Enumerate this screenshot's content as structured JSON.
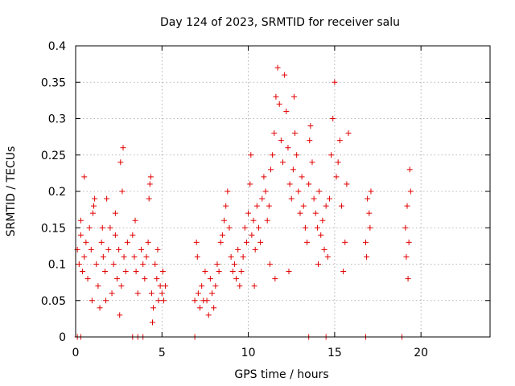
{
  "chart_data": {
    "type": "scatter",
    "title": "Day 124 of 2023, SRMTID for receiver salu",
    "xlabel": "GPS time / hours",
    "ylabel": "SRMTID / TECUs",
    "xlim": [
      0,
      24
    ],
    "ylim": [
      0,
      0.4
    ],
    "x_ticks": [
      0,
      5,
      10,
      15,
      20
    ],
    "x_tick_labels": [
      "0",
      "5",
      "10",
      "15",
      "20"
    ],
    "y_ticks": [
      0,
      0.05,
      0.1,
      0.15,
      0.2,
      0.25,
      0.3,
      0.35,
      0.4
    ],
    "y_tick_labels": [
      "0",
      "0.05",
      "0.1",
      "0.15",
      "0.2",
      "0.25",
      "0.3",
      "0.35",
      "0.4"
    ],
    "grid": true,
    "marker": "+",
    "marker_color": "#e00000",
    "series": [
      {
        "name": "SRMTID",
        "points": [
          [
            0.1,
            0.12
          ],
          [
            0.2,
            0.1
          ],
          [
            0.3,
            0.14
          ],
          [
            0.4,
            0.09
          ],
          [
            0.5,
            0.11
          ],
          [
            0.6,
            0.13
          ],
          [
            0.7,
            0.08
          ],
          [
            0.8,
            0.15
          ],
          [
            0.9,
            0.12
          ],
          [
            1.0,
            0.17
          ],
          [
            1.1,
            0.19
          ],
          [
            1.2,
            0.1
          ],
          [
            1.3,
            0.07
          ],
          [
            1.4,
            0.04
          ],
          [
            1.5,
            0.13
          ],
          [
            1.6,
            0.11
          ],
          [
            1.7,
            0.09
          ],
          [
            1.8,
            0.19
          ],
          [
            1.9,
            0.12
          ],
          [
            2.0,
            0.15
          ],
          [
            2.1,
            0.06
          ],
          [
            2.2,
            0.1
          ],
          [
            2.3,
            0.14
          ],
          [
            2.4,
            0.08
          ],
          [
            2.5,
            0.12
          ],
          [
            2.6,
            0.24
          ],
          [
            2.7,
            0.2
          ],
          [
            2.8,
            0.11
          ],
          [
            2.9,
            0.09
          ],
          [
            3.0,
            0.13
          ],
          [
            0.5,
            0.22
          ],
          [
            1.05,
            0.18
          ],
          [
            2.75,
            0.26
          ],
          [
            0.95,
            0.05
          ],
          [
            1.75,
            0.05
          ],
          [
            2.55,
            0.03
          ],
          [
            2.65,
            0.07
          ],
          [
            0.3,
            0.16
          ],
          [
            1.55,
            0.15
          ],
          [
            2.3,
            0.17
          ],
          [
            3.3,
            0.14
          ],
          [
            3.4,
            0.11
          ],
          [
            3.5,
            0.09
          ],
          [
            3.6,
            0.06
          ],
          [
            3.8,
            0.12
          ],
          [
            3.9,
            0.1
          ],
          [
            4.0,
            0.08
          ],
          [
            4.1,
            0.11
          ],
          [
            4.2,
            0.13
          ],
          [
            4.3,
            0.21
          ],
          [
            4.35,
            0.22
          ],
          [
            4.4,
            0.06
          ],
          [
            4.5,
            0.04
          ],
          [
            4.6,
            0.1
          ],
          [
            4.7,
            0.08
          ],
          [
            4.8,
            0.05
          ],
          [
            4.9,
            0.07
          ],
          [
            5.0,
            0.06
          ],
          [
            5.1,
            0.05
          ],
          [
            5.2,
            0.07
          ],
          [
            4.45,
            0.02
          ],
          [
            4.25,
            0.19
          ],
          [
            3.45,
            0.16
          ],
          [
            4.75,
            0.12
          ],
          [
            5.05,
            0.09
          ],
          [
            6.9,
            0.05
          ],
          [
            7.0,
            0.13
          ],
          [
            7.05,
            0.11
          ],
          [
            7.1,
            0.06
          ],
          [
            7.2,
            0.04
          ],
          [
            7.3,
            0.07
          ],
          [
            7.4,
            0.05
          ],
          [
            7.5,
            0.09
          ],
          [
            7.6,
            0.05
          ],
          [
            7.7,
            0.03
          ],
          [
            7.8,
            0.08
          ],
          [
            7.9,
            0.06
          ],
          [
            8.0,
            0.04
          ],
          [
            8.1,
            0.07
          ],
          [
            8.2,
            0.1
          ],
          [
            8.3,
            0.09
          ],
          [
            8.4,
            0.13
          ],
          [
            8.5,
            0.14
          ],
          [
            8.6,
            0.16
          ],
          [
            8.7,
            0.18
          ],
          [
            8.8,
            0.2
          ],
          [
            8.9,
            0.15
          ],
          [
            9.0,
            0.11
          ],
          [
            9.1,
            0.09
          ],
          [
            9.2,
            0.1
          ],
          [
            9.3,
            0.08
          ],
          [
            9.4,
            0.12
          ],
          [
            9.5,
            0.07
          ],
          [
            9.6,
            0.09
          ],
          [
            9.7,
            0.11
          ],
          [
            9.8,
            0.15
          ],
          [
            9.9,
            0.13
          ],
          [
            10.0,
            0.17
          ],
          [
            10.1,
            0.21
          ],
          [
            10.2,
            0.14
          ],
          [
            10.3,
            0.16
          ],
          [
            10.4,
            0.12
          ],
          [
            10.5,
            0.18
          ],
          [
            10.6,
            0.15
          ],
          [
            10.7,
            0.13
          ],
          [
            10.8,
            0.19
          ],
          [
            10.9,
            0.22
          ],
          [
            11.0,
            0.2
          ],
          [
            11.1,
            0.16
          ],
          [
            11.2,
            0.18
          ],
          [
            11.3,
            0.23
          ],
          [
            11.4,
            0.25
          ],
          [
            11.5,
            0.28
          ],
          [
            11.6,
            0.33
          ],
          [
            11.7,
            0.37
          ],
          [
            11.8,
            0.32
          ],
          [
            11.9,
            0.27
          ],
          [
            12.0,
            0.24
          ],
          [
            12.1,
            0.36
          ],
          [
            12.2,
            0.31
          ],
          [
            12.3,
            0.26
          ],
          [
            12.4,
            0.21
          ],
          [
            12.5,
            0.19
          ],
          [
            12.6,
            0.23
          ],
          [
            12.7,
            0.28
          ],
          [
            12.8,
            0.25
          ],
          [
            12.9,
            0.2
          ],
          [
            13.0,
            0.17
          ],
          [
            13.1,
            0.22
          ],
          [
            13.2,
            0.18
          ],
          [
            13.3,
            0.15
          ],
          [
            13.4,
            0.13
          ],
          [
            13.5,
            0.21
          ],
          [
            13.6,
            0.29
          ],
          [
            13.7,
            0.24
          ],
          [
            13.8,
            0.19
          ],
          [
            13.9,
            0.17
          ],
          [
            14.0,
            0.15
          ],
          [
            14.1,
            0.2
          ],
          [
            14.2,
            0.14
          ],
          [
            14.3,
            0.16
          ],
          [
            14.4,
            0.12
          ],
          [
            14.5,
            0.18
          ],
          [
            14.6,
            0.11
          ],
          [
            14.7,
            0.19
          ],
          [
            14.8,
            0.25
          ],
          [
            14.9,
            0.3
          ],
          [
            15.0,
            0.35
          ],
          [
            15.1,
            0.22
          ],
          [
            15.2,
            0.24
          ],
          [
            15.3,
            0.27
          ],
          [
            15.4,
            0.18
          ],
          [
            15.5,
            0.09
          ],
          [
            15.6,
            0.13
          ],
          [
            15.7,
            0.21
          ],
          [
            15.8,
            0.28
          ],
          [
            10.35,
            0.07
          ],
          [
            11.55,
            0.08
          ],
          [
            12.35,
            0.09
          ],
          [
            13.55,
            0.27
          ],
          [
            14.05,
            0.1
          ],
          [
            10.15,
            0.25
          ],
          [
            11.25,
            0.1
          ],
          [
            12.65,
            0.33
          ],
          [
            16.8,
            0.13
          ],
          [
            16.9,
            0.19
          ],
          [
            17.0,
            0.17
          ],
          [
            17.05,
            0.15
          ],
          [
            17.1,
            0.2
          ],
          [
            16.85,
            0.11
          ],
          [
            19.1,
            0.15
          ],
          [
            19.2,
            0.18
          ],
          [
            19.3,
            0.13
          ],
          [
            19.35,
            0.23
          ],
          [
            19.25,
            0.08
          ],
          [
            19.4,
            0.2
          ],
          [
            19.15,
            0.11
          ]
        ],
        "zero_points": [
          0.1,
          0.3,
          3.3,
          3.6,
          3.9,
          6.9,
          13.5,
          14.5,
          16.8,
          18.9
        ]
      }
    ]
  }
}
